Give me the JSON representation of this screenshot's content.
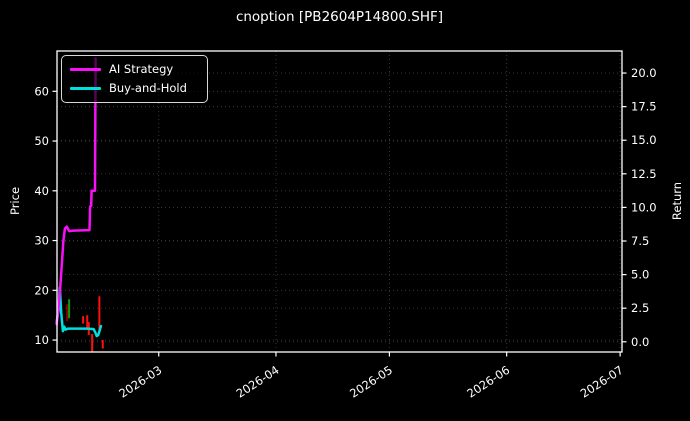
{
  "figure": {
    "background": "#000000",
    "text_color": "#ffffff",
    "frame_color": "#ffffff",
    "grid_color": "#3d3d3d"
  },
  "chart_data": {
    "type": "line",
    "title": "cnoption [PB2604P14800.SHF]",
    "ylabel_left": "Price",
    "ylabel_right": "Return",
    "grid": true,
    "legend_position": "upper left",
    "x_axis": {
      "unit": "days since 2026-02-01",
      "tick_labels": [
        "2026-03",
        "2026-04",
        "2026-05",
        "2026-06",
        "2026-07"
      ],
      "tick_days": [
        28,
        59,
        89,
        120,
        150
      ],
      "xlim_days": [
        1.1,
        150.5
      ]
    },
    "left_axis": {
      "label": "Price",
      "ticks": [
        10,
        20,
        30,
        40,
        50,
        60
      ],
      "tick_labels": [
        "10",
        "20",
        "30",
        "40",
        "50",
        "60"
      ],
      "ylim": [
        7.6,
        68.1
      ]
    },
    "right_axis": {
      "label": "Return",
      "ticks": [
        0,
        2.5,
        5,
        7.5,
        10,
        12.5,
        15,
        17.5,
        20
      ],
      "tick_labels": [
        "0.0",
        "2.5",
        "5.0",
        "7.5",
        "10.0",
        "12.5",
        "15.0",
        "17.5",
        "20.0"
      ],
      "ylim": [
        -0.76,
        21.64
      ]
    },
    "series": [
      {
        "name": "AI Strategy",
        "color": "#f711f7",
        "axis": "left",
        "points": [
          [
            1.0,
            13.2
          ],
          [
            1.5,
            16.5
          ],
          [
            2.0,
            21.0
          ],
          [
            2.4,
            25.5
          ],
          [
            2.8,
            30.0
          ],
          [
            3.2,
            32.4
          ],
          [
            3.7,
            32.8
          ],
          [
            4.3,
            31.9
          ],
          [
            5.5,
            32.0
          ],
          [
            9.7,
            32.1
          ],
          [
            9.85,
            36.8
          ],
          [
            10.15,
            37.0
          ],
          [
            10.25,
            40.0
          ],
          [
            11.15,
            40.0
          ],
          [
            11.3,
            66.6
          ]
        ]
      },
      {
        "name": "Buy-and-Hold",
        "color": "#00dede",
        "axis": "left",
        "points": [
          [
            1.0,
            13.5
          ],
          [
            1.5,
            16.0
          ],
          [
            1.85,
            20.6
          ],
          [
            2.2,
            15.5
          ],
          [
            2.65,
            11.8
          ],
          [
            3.0,
            12.7
          ],
          [
            3.35,
            12.1
          ],
          [
            4.0,
            12.3
          ],
          [
            9.0,
            12.3
          ],
          [
            10.8,
            12.2
          ],
          [
            11.3,
            11.4
          ],
          [
            11.6,
            10.8
          ],
          [
            12.0,
            11.0
          ],
          [
            12.35,
            11.8
          ],
          [
            12.7,
            12.8
          ]
        ]
      }
    ],
    "candlesticks": [
      {
        "day": 3.8,
        "low": 13.8,
        "high": 17.2,
        "color": "#8b0000"
      },
      {
        "day": 4.3,
        "low": 14.4,
        "high": 18.2,
        "color": "#0c9b0c"
      },
      {
        "day": 8.0,
        "low": 13.3,
        "high": 14.8,
        "color": "#ff1010"
      },
      {
        "day": 9.1,
        "low": 12.3,
        "high": 15.0,
        "color": "#ff1010"
      },
      {
        "day": 9.5,
        "low": 11.0,
        "high": 13.6,
        "color": "#ff1010"
      },
      {
        "day": 10.4,
        "low": 7.7,
        "high": 11.2,
        "color": "#ff1010"
      },
      {
        "day": 12.3,
        "low": 11.5,
        "high": 18.8,
        "color": "#ff1010"
      },
      {
        "day": 13.2,
        "low": 8.3,
        "high": 10.0,
        "color": "#ff1010"
      }
    ]
  }
}
